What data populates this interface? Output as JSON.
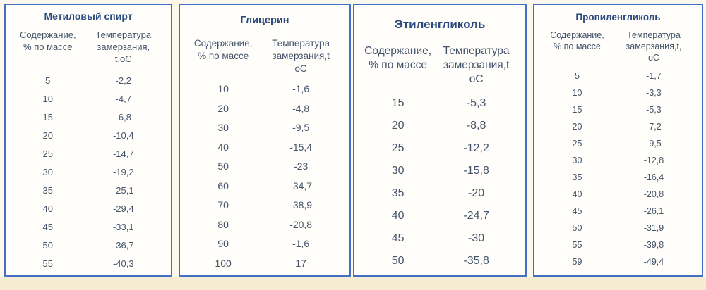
{
  "colors": {
    "table_border": "#4470c4",
    "title_text": "#2b4a7d",
    "body_text": "#44546a",
    "page_background": "#fdf8ee",
    "bottom_strip": "#f6ecd4"
  },
  "tables": [
    {
      "title": "Метиловый спирт",
      "col1_header": "Содержание,\n% по массе",
      "col2_header": "Температура\nзамерзания,\nt,оС",
      "rows": [
        [
          "5",
          "-2,2"
        ],
        [
          "10",
          "-4,7"
        ],
        [
          "15",
          "-6,8"
        ],
        [
          "20",
          "-10,4"
        ],
        [
          "25",
          "-14,7"
        ],
        [
          "30",
          "-19,2"
        ],
        [
          "35",
          "-25,1"
        ],
        [
          "40",
          "-29,4"
        ],
        [
          "45",
          "-33,1"
        ],
        [
          "50",
          "-36,7"
        ],
        [
          "55",
          "-40,3"
        ]
      ]
    },
    {
      "title": "Глицерин",
      "col1_header": "Содержание,\n% по массе",
      "col2_header": "Температура\nзамерзания,t\nоС",
      "rows": [
        [
          "10",
          "-1,6"
        ],
        [
          "20",
          "-4,8"
        ],
        [
          "30",
          "-9,5"
        ],
        [
          "40",
          "-15,4"
        ],
        [
          "50",
          "-23"
        ],
        [
          "60",
          "-34,7"
        ],
        [
          "70",
          "-38,9"
        ],
        [
          "80",
          "-20,8"
        ],
        [
          "90",
          "-1,6"
        ],
        [
          "100",
          "17"
        ]
      ]
    },
    {
      "title": "Этиленгликоль",
      "col1_header": "Содержание,\n% по массе",
      "col2_header": "Температура\nзамерзания,t\nоС",
      "rows": [
        [
          "15",
          "-5,3"
        ],
        [
          "20",
          "-8,8"
        ],
        [
          "25",
          "-12,2"
        ],
        [
          "30",
          "-15,8"
        ],
        [
          "35",
          "-20"
        ],
        [
          "40",
          "-24,7"
        ],
        [
          "45",
          "-30"
        ],
        [
          "50",
          "-35,8"
        ]
      ]
    },
    {
      "title": "Пропиленгликоль",
      "col1_header": "Содержание,\n% по массе",
      "col2_header": "Температура\nзамерзания,t,\nоС",
      "rows": [
        [
          "5",
          "-1,7"
        ],
        [
          "10",
          "-3,3"
        ],
        [
          "15",
          "-5,3"
        ],
        [
          "20",
          "-7,2"
        ],
        [
          "25",
          "-9,5"
        ],
        [
          "30",
          "-12,8"
        ],
        [
          "35",
          "-16,4"
        ],
        [
          "40",
          "-20,8"
        ],
        [
          "45",
          "-26,1"
        ],
        [
          "50",
          "-31,9"
        ],
        [
          "55",
          "-39,8"
        ],
        [
          "59",
          "-49,4"
        ]
      ]
    }
  ]
}
